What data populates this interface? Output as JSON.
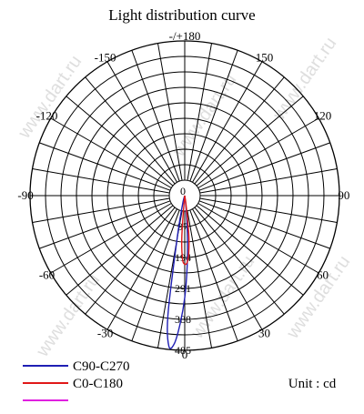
{
  "chart_data": {
    "type": "polar",
    "title": "Light distribution curve",
    "unit_label": "Unit : cd",
    "radial_max": 485,
    "radial_ticks": [
      0,
      97,
      194,
      291,
      388,
      485
    ],
    "radial_tick_labels": [
      "0",
      "97",
      "194",
      "291",
      "388",
      "485"
    ],
    "ring_values": [
      48.5,
      97,
      145.5,
      194,
      242.5,
      291,
      339.5,
      388,
      436.5,
      485
    ],
    "spoke_step_deg": 10,
    "angle_labels": [
      {
        "angle": 0,
        "text": "0"
      },
      {
        "angle": 30,
        "text": "30"
      },
      {
        "angle": 60,
        "text": "60"
      },
      {
        "angle": 90,
        "text": "90"
      },
      {
        "angle": 120,
        "text": "120"
      },
      {
        "angle": 150,
        "text": "150"
      },
      {
        "angle": 180,
        "text": "-/+180"
      },
      {
        "angle": -150,
        "text": "-150"
      },
      {
        "angle": -120,
        "text": "-120"
      },
      {
        "angle": -90,
        "text": "-90"
      },
      {
        "angle": -60,
        "text": "-60"
      },
      {
        "angle": -30,
        "text": "-30"
      }
    ],
    "series": [
      {
        "name": "C90-C270",
        "color": "#1f1fb4",
        "points": [
          {
            "angle": -14,
            "value": 30
          },
          {
            "angle": -10,
            "value": 140
          },
          {
            "angle": -8,
            "value": 380
          },
          {
            "angle": -6,
            "value": 475
          },
          {
            "angle": -4,
            "value": 465
          },
          {
            "angle": -2,
            "value": 400
          },
          {
            "angle": 0,
            "value": 320
          },
          {
            "angle": 2,
            "value": 220
          },
          {
            "angle": 4,
            "value": 120
          },
          {
            "angle": 6,
            "value": 40
          }
        ]
      },
      {
        "name": "C0-C180",
        "color": "#e01818",
        "points": [
          {
            "angle": -6,
            "value": 15
          },
          {
            "angle": -4,
            "value": 130
          },
          {
            "angle": -2,
            "value": 200
          },
          {
            "angle": 0,
            "value": 215
          },
          {
            "angle": 2,
            "value": 210
          },
          {
            "angle": 4,
            "value": 180
          },
          {
            "angle": 6,
            "value": 120
          },
          {
            "angle": 8,
            "value": 30
          }
        ]
      },
      {
        "name": "",
        "color": "#e020e0",
        "points": []
      }
    ]
  },
  "watermark": "www.dart.ru"
}
